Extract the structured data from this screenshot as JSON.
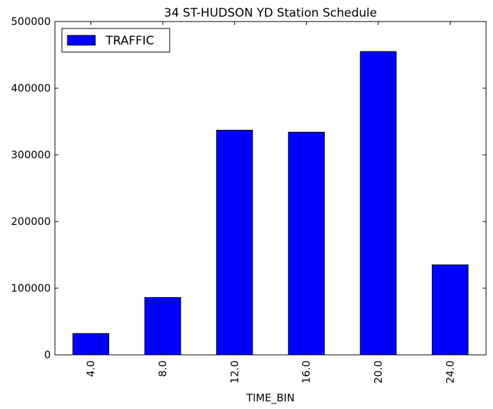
{
  "chart_data": {
    "type": "bar",
    "title": "34 ST-HUDSON YD Station Schedule",
    "xlabel": "TIME_BIN",
    "ylabel": "",
    "categories": [
      "4.0",
      "8.0",
      "12.0",
      "16.0",
      "20.0",
      "24.0"
    ],
    "series": [
      {
        "name": "TRAFFIC",
        "color": "#0000ff",
        "values": [
          32000,
          86000,
          337000,
          334000,
          455000,
          135000
        ]
      }
    ],
    "ylim": [
      0,
      500000
    ],
    "yticks": [
      0,
      100000,
      200000,
      300000,
      400000,
      500000
    ],
    "ytick_labels": [
      "0",
      "100000",
      "200000",
      "300000",
      "400000",
      "500000"
    ],
    "x_tick_rotation": "vertical",
    "grid": false,
    "legend_position": "top-left"
  }
}
